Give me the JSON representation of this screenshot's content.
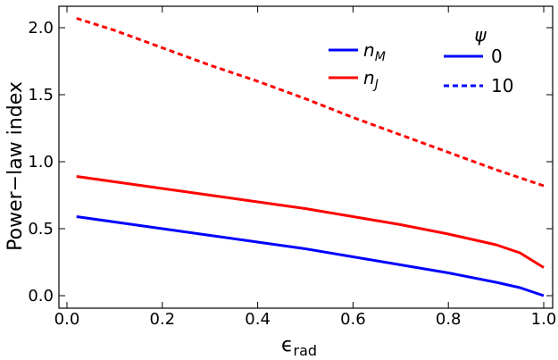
{
  "chart_data": {
    "type": "line",
    "xlabel_main": "ϵ",
    "xlabel_sub": "rad",
    "ylabel": "Power−law index",
    "xlim": [
      0.0,
      1.0
    ],
    "ylim": [
      0.0,
      2.2
    ],
    "xticks": [
      "0.0",
      "0.2",
      "0.4",
      "0.6",
      "0.8",
      "1.0"
    ],
    "yticks": [
      "0.0",
      "0.5",
      "1.0",
      "1.5",
      "2.0"
    ],
    "grid": false,
    "series": [
      {
        "name": "n_M",
        "color": "#0000ff",
        "style": "solid",
        "psi": "0",
        "x": [
          0.02,
          0.1,
          0.2,
          0.3,
          0.4,
          0.5,
          0.6,
          0.7,
          0.8,
          0.9,
          0.95,
          1.0
        ],
        "y": [
          0.59,
          0.55,
          0.5,
          0.45,
          0.4,
          0.35,
          0.29,
          0.23,
          0.17,
          0.1,
          0.06,
          0.0
        ]
      },
      {
        "name": "n_J",
        "color": "#ff0000",
        "style": "solid",
        "psi": "0",
        "x": [
          0.02,
          0.1,
          0.2,
          0.3,
          0.4,
          0.5,
          0.6,
          0.7,
          0.8,
          0.9,
          0.95,
          1.0
        ],
        "y": [
          0.89,
          0.85,
          0.8,
          0.75,
          0.7,
          0.65,
          0.59,
          0.53,
          0.46,
          0.38,
          0.32,
          0.21
        ]
      },
      {
        "name": "n_J",
        "color": "#ff0000",
        "style": "dashed",
        "psi": "10",
        "x": [
          0.02,
          0.1,
          0.2,
          0.3,
          0.4,
          0.5,
          0.6,
          0.7,
          0.8,
          0.9,
          1.0
        ],
        "y": [
          2.07,
          1.98,
          1.85,
          1.72,
          1.6,
          1.47,
          1.33,
          1.2,
          1.07,
          0.94,
          0.82
        ]
      }
    ],
    "legend": {
      "placement": "top-right",
      "names": [
        {
          "label": "n",
          "sub": "M",
          "color": "#0000ff"
        },
        {
          "label": "n",
          "sub": "J",
          "color": "#ff0000"
        }
      ],
      "psi_title": "ψ",
      "psi": [
        {
          "label": "0",
          "style": "solid",
          "color": "#0000ff"
        },
        {
          "label": "10",
          "style": "dashed",
          "color": "#0000ff"
        }
      ]
    }
  }
}
